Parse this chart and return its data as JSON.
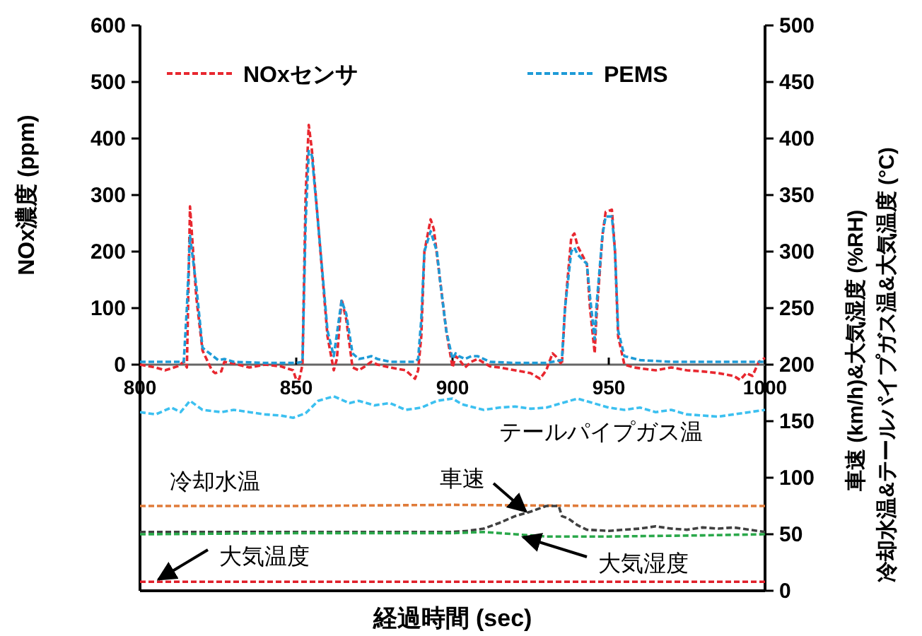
{
  "chart_data": {
    "type": "line",
    "xlabel": "経過時間 (sec)",
    "ylabel": "NOx濃度 (ppm)",
    "y2label": "車速 (km/h)&大気湿度 (%RH)\n冷却水温&テールパイプガス温&大気温度 (°C)",
    "xlim": [
      800,
      1000
    ],
    "xticks": [
      800,
      850,
      900,
      950,
      1000
    ],
    "ylim": [
      -400,
      600
    ],
    "yticks": [
      0,
      100,
      200,
      300,
      400,
      500,
      600
    ],
    "y2lim": [
      0,
      500
    ],
    "y2ticks": [
      0,
      50,
      100,
      150,
      200,
      250,
      300,
      350,
      400,
      450,
      500
    ],
    "grid": false,
    "legend": "top",
    "line_style": "dashed",
    "marker": "none",
    "series": [
      {
        "name": "NOxセンサ",
        "color": "#e8272f",
        "x": [
          800,
          805,
          808,
          812,
          814,
          815,
          816,
          818,
          820,
          823,
          824,
          826,
          827,
          830,
          835,
          840,
          845,
          849,
          850,
          851,
          852,
          853,
          854,
          855,
          857,
          860,
          862,
          863,
          864.5,
          866,
          868,
          870,
          872,
          874,
          876,
          880,
          885,
          887,
          888,
          889,
          890,
          891,
          893,
          894,
          896,
          898,
          900,
          901,
          902,
          904,
          906,
          908,
          912,
          915,
          920,
          925,
          928,
          930,
          932,
          933,
          935,
          936,
          938,
          939,
          940,
          943,
          944,
          945.5,
          946,
          948,
          949,
          951,
          952,
          953,
          955,
          958,
          965,
          970,
          975,
          980,
          985,
          990,
          992,
          994,
          996,
          998,
          1000
        ],
        "values": [
          0,
          -5,
          -10,
          -3,
          5,
          -5,
          280,
          120,
          25,
          -10,
          -15,
          -12,
          5,
          2,
          -5,
          0,
          -3,
          -10,
          -27,
          -25,
          0,
          300,
          424,
          380,
          250,
          50,
          -10,
          10,
          116,
          80,
          -5,
          -10,
          -3,
          5,
          0,
          -5,
          -10,
          -20,
          -25,
          -10,
          50,
          200,
          257,
          240,
          150,
          60,
          -5,
          15,
          10,
          -5,
          5,
          10,
          -3,
          -5,
          -10,
          -15,
          -25,
          -10,
          20,
          15,
          0,
          100,
          225,
          232,
          210,
          178,
          100,
          20,
          80,
          230,
          270,
          274,
          200,
          50,
          0,
          -5,
          -10,
          -5,
          -10,
          -12,
          -15,
          -20,
          -27,
          -15,
          -20,
          5,
          12
        ]
      },
      {
        "name": "PEMS",
        "color": "#1e9bd7",
        "x": [
          800,
          810,
          814,
          815,
          816,
          818,
          820,
          825,
          827,
          830,
          840,
          850,
          852,
          853,
          854,
          855,
          857,
          860,
          862,
          864.5,
          866,
          868,
          870,
          872,
          874,
          876,
          880,
          888,
          889,
          890,
          891,
          893,
          895,
          896,
          898,
          900,
          901,
          902,
          904,
          906,
          908,
          912,
          920,
          930,
          935,
          936,
          938,
          939,
          940,
          943,
          944,
          945.5,
          946,
          948,
          949,
          951,
          952,
          953,
          955,
          960,
          970,
          980,
          990,
          1000
        ],
        "values": [
          5,
          5,
          5,
          100,
          228,
          140,
          30,
          8,
          10,
          5,
          3,
          3,
          5,
          250,
          378,
          370,
          250,
          60,
          15,
          113,
          90,
          20,
          10,
          12,
          15,
          10,
          5,
          5,
          10,
          80,
          200,
          236,
          200,
          150,
          60,
          10,
          20,
          15,
          10,
          15,
          15,
          5,
          3,
          3,
          8,
          100,
          200,
          207,
          195,
          178,
          120,
          45,
          100,
          230,
          262,
          262,
          200,
          60,
          15,
          8,
          5,
          5,
          5,
          5
        ]
      },
      {
        "axis": "y2",
        "color": "#3cc0f0",
        "x": [
          800,
          805,
          810,
          813,
          816,
          820,
          826,
          830,
          835,
          840,
          845,
          849,
          853,
          857,
          862,
          867,
          870,
          875,
          880,
          885,
          890,
          895,
          900,
          903,
          910,
          915,
          920,
          925,
          930,
          935,
          940,
          945,
          950,
          955,
          960,
          965,
          970,
          975,
          980,
          985,
          990,
          995,
          1000
        ],
        "values": [
          158,
          156,
          162,
          158,
          168,
          160,
          158,
          160,
          158,
          156,
          155,
          153,
          157,
          168,
          172,
          166,
          168,
          164,
          166,
          160,
          162,
          168,
          170,
          165,
          160,
          162,
          163,
          161,
          162,
          166,
          170,
          166,
          162,
          160,
          162,
          158,
          160,
          156,
          155,
          154,
          156,
          158,
          160
        ]
      },
      {
        "axis": "y2",
        "color": "#e07b39",
        "x": [
          800,
          850,
          900,
          950,
          1000
        ],
        "values": [
          75,
          75,
          76,
          75,
          75
        ]
      },
      {
        "axis": "y2",
        "color": "#404040",
        "x": [
          800,
          850,
          900,
          905,
          910,
          915,
          920,
          925,
          930,
          934,
          935,
          937,
          940,
          943,
          950,
          960,
          965,
          970,
          975,
          980,
          985,
          990,
          995,
          1000
        ],
        "values": [
          52,
          52,
          52,
          53,
          55,
          60,
          66,
          70,
          75,
          75,
          66,
          64,
          58,
          54,
          53,
          55,
          57,
          55,
          54,
          56,
          55,
          56,
          54,
          52
        ]
      },
      {
        "axis": "y2",
        "color": "#2aa84a",
        "x": [
          800,
          850,
          900,
          910,
          920,
          930,
          950,
          980,
          1000
        ],
        "values": [
          50,
          51,
          51,
          52,
          50,
          48,
          48,
          49,
          50
        ]
      },
      {
        "axis": "y2",
        "color": "#e0202a",
        "x": [
          800,
          1000
        ],
        "values": [
          8,
          8
        ]
      }
    ],
    "annotations": [
      "テールパイプガス温",
      "冷却水温",
      "車速",
      {
        "text": "大気湿度",
        "x": 922.6,
        "y": -305
      },
      "大気温度"
    ]
  }
}
